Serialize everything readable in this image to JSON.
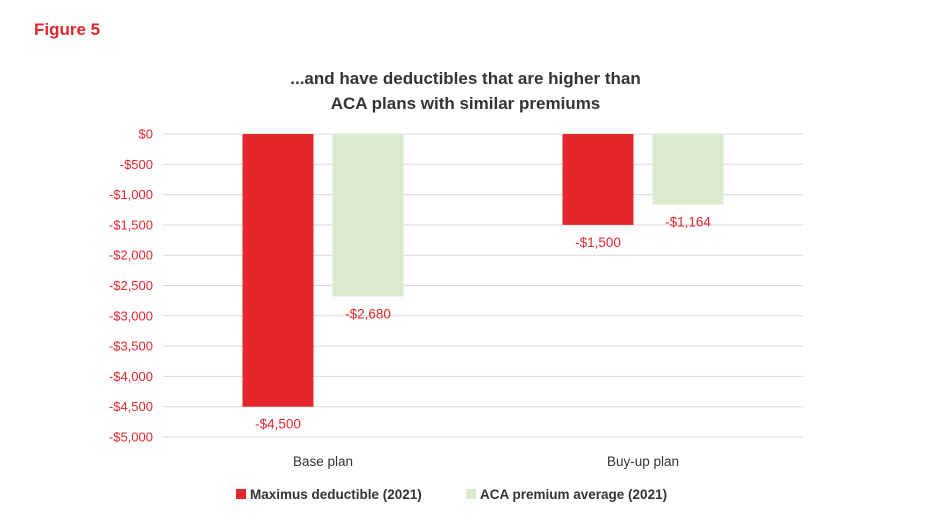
{
  "figure_label": "Figure 5",
  "chart_data": {
    "type": "bar",
    "title_lines": [
      "...and have deductibles that are higher than",
      "ACA plans with similar premiums"
    ],
    "categories": [
      "Base plan",
      "Buy-up plan"
    ],
    "series": [
      {
        "name": "Maximus deductible (2021)",
        "color": "#e3262c",
        "values": [
          -4500,
          -1500
        ],
        "labels": [
          "-$4,500",
          "-$1,500"
        ]
      },
      {
        "name": "ACA premium average (2021)",
        "color": "#dcebd0",
        "values": [
          -2680,
          -1164
        ],
        "labels": [
          "-$2,680",
          "-$1,164"
        ]
      }
    ],
    "yticks": [
      0,
      -500,
      -1000,
      -1500,
      -2000,
      -2500,
      -3000,
      -3500,
      -4000,
      -4500,
      -5000
    ],
    "ytick_labels": [
      "$0",
      "-$500",
      "-$1,000",
      "-$1,500",
      "-$2,000",
      "-$2,500",
      "-$3,000",
      "-$3,500",
      "-$4,000",
      "-$4,500",
      "-$5,000"
    ],
    "ylim": [
      -5000,
      0
    ],
    "grid": true,
    "legend_position": "bottom-center",
    "xlabel": "",
    "ylabel": ""
  }
}
